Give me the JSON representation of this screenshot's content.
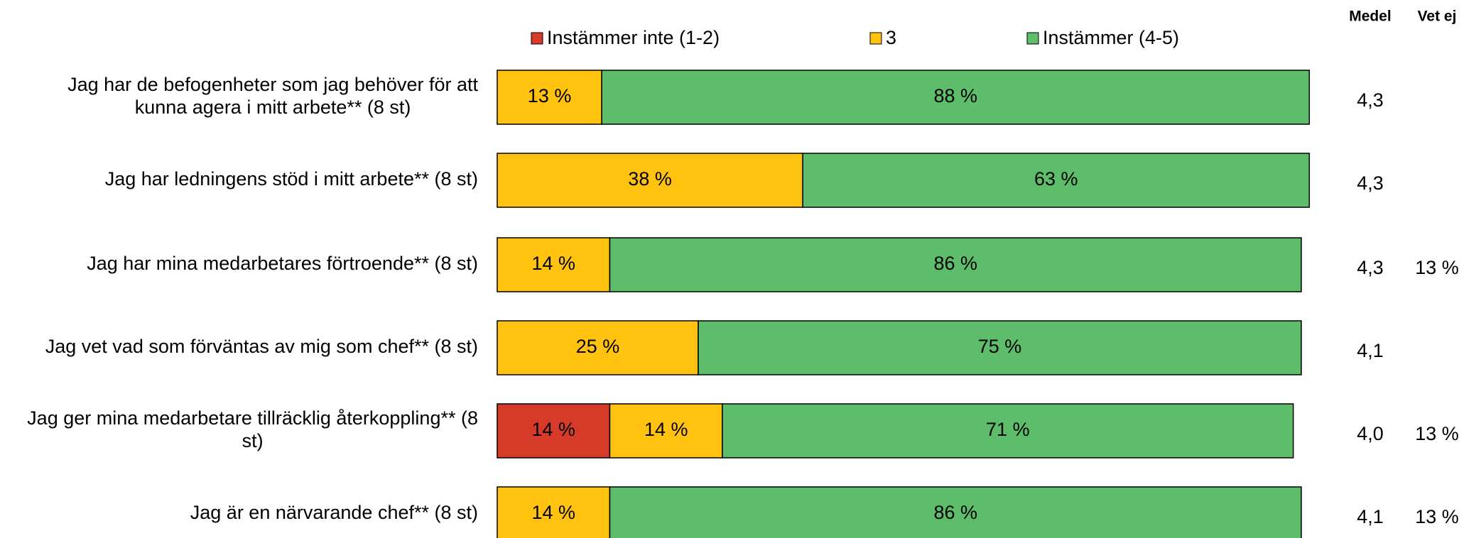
{
  "chart_data": {
    "type": "stacked_bar_horizontal",
    "categories": [
      "Jag har de befogenheter som jag behöver för att\nkunna agera i mitt arbete** (8 st)",
      "Jag har ledningens stöd i mitt arbete** (8 st)",
      "Jag har mina medarbetares förtroende** (8 st)",
      "Jag vet vad som förväntas av mig som chef** (8 st)",
      "Jag ger mina medarbetare tillräcklig återkoppling** (8\nst)",
      "Jag är en närvarande chef** (8 st)"
    ],
    "series": [
      {
        "name": "Instämmer inte (1-2)",
        "color": "#d63b2a",
        "values": [
          null,
          null,
          null,
          null,
          14,
          null
        ],
        "value_labels": [
          null,
          null,
          null,
          null,
          "14 %",
          null
        ]
      },
      {
        "name": "3",
        "color": "#ffc20e",
        "values": [
          13,
          38,
          14,
          25,
          14,
          14
        ],
        "value_labels": [
          "13 %",
          "38 %",
          "14 %",
          "25 %",
          "14 %",
          "14 %"
        ]
      },
      {
        "name": "Instämmer (4-5)",
        "color": "#5dbd6a",
        "values": [
          88,
          63,
          86,
          75,
          71,
          86
        ],
        "value_labels": [
          "88 %",
          "63 %",
          "86 %",
          "75 %",
          "71 %",
          "86 %"
        ]
      }
    ],
    "xlim": [
      0,
      100
    ],
    "columns": [
      {
        "header": "Medel",
        "values": [
          4.3,
          4.3,
          4.3,
          4.1,
          4.0,
          4.1
        ],
        "value_labels": [
          "4,3",
          "4,3",
          "4,3",
          "4,1",
          "4,0",
          "4,1"
        ]
      },
      {
        "header": "Vet ej",
        "values": [
          null,
          null,
          13,
          null,
          13,
          13
        ],
        "value_labels": [
          null,
          null,
          "13 %",
          null,
          "13 %",
          "13 %"
        ]
      }
    ]
  }
}
